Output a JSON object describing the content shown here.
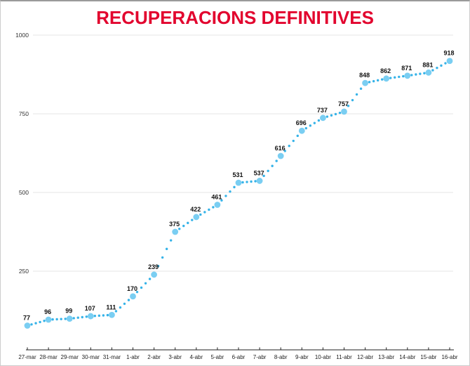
{
  "title": "RECUPERACIONS DEFINITIVES",
  "colors": {
    "title": "#e2042e",
    "point": "#6cc9f1",
    "connector_dot": "#36b3e8",
    "grid": "#e4e4e4",
    "axis": "#222222",
    "value_label": "#111111",
    "tick_label": "#333333",
    "background": "#ffffff"
  },
  "chart_data": {
    "type": "line",
    "style": "dotted",
    "title": "RECUPERACIONS DEFINITIVES",
    "xlabel": "",
    "ylabel": "",
    "categories": [
      "27-mar",
      "28-mar",
      "29-mar",
      "30-mar",
      "31-mar",
      "1-abr",
      "2-abr",
      "3-abr",
      "4-abr",
      "5-abr",
      "6-abr",
      "7-abr",
      "8-abr",
      "9-abr",
      "10-abr",
      "11-abr",
      "12-abr",
      "13-abr",
      "14-abr",
      "15-abr",
      "16-abr"
    ],
    "values": [
      77,
      96,
      99,
      107,
      111,
      170,
      239,
      375,
      422,
      461,
      531,
      537,
      616,
      696,
      737,
      757,
      848,
      862,
      871,
      881,
      918
    ],
    "ylim": [
      0,
      1000
    ],
    "yticks": [
      250,
      500,
      750,
      1000
    ],
    "grid": true,
    "legend": "none",
    "point_labels": true
  }
}
